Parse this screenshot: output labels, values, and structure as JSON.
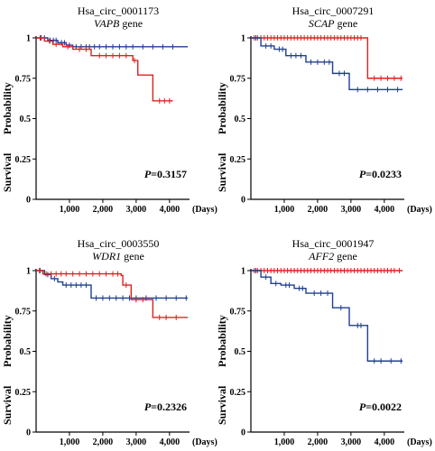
{
  "chart_data": [
    {
      "type": "line",
      "title": "Hsa_circ_0001173",
      "gene_symbol": "VAPB",
      "gene_suffix": " gene",
      "ylabel_left": "Survival",
      "ylabel_right": "Probability",
      "p_prefix": "P",
      "p_value": "=0.3157",
      "x_unit_label": "(Days)",
      "xlim": [
        0,
        4600
      ],
      "ylim": [
        0,
        1
      ],
      "x_ticks": [
        1000,
        2000,
        3000,
        4000
      ],
      "x_tick_labels": [
        "1,000",
        "2,000",
        "3,000",
        "4,000"
      ],
      "y_ticks": [
        0,
        0.25,
        0.5,
        0.75,
        1
      ],
      "y_tick_labels": [
        "0",
        "0.25",
        "0.5",
        "0.75",
        "1"
      ],
      "series": [
        {
          "color": "#1f3f8f",
          "steps": [
            [
              0,
              1
            ],
            [
              350,
              0.985
            ],
            [
              650,
              0.97
            ],
            [
              900,
              0.955
            ],
            [
              1100,
              0.945
            ],
            [
              4550,
              0.945
            ]
          ],
          "censors": [
            150,
            250,
            420,
            520,
            600,
            760,
            850,
            1000,
            1200,
            1350,
            1500,
            1600,
            1750,
            1900,
            2100,
            2300,
            2500,
            2700,
            2900,
            3200,
            3500,
            3800,
            4100
          ]
        },
        {
          "color": "#e02020",
          "steps": [
            [
              0,
              1
            ],
            [
              250,
              0.98
            ],
            [
              500,
              0.96
            ],
            [
              800,
              0.945
            ],
            [
              1100,
              0.93
            ],
            [
              1650,
              0.89
            ],
            [
              2900,
              0.86
            ],
            [
              3050,
              0.77
            ],
            [
              3500,
              0.61
            ],
            [
              4100,
              0.61
            ]
          ],
          "censors": [
            120,
            400,
            600,
            950,
            1300,
            1500,
            1900,
            2100,
            2300,
            2500,
            2700,
            2950,
            3700,
            3850,
            4000
          ]
        }
      ]
    },
    {
      "type": "line",
      "title": "Hsa_circ_0007291",
      "gene_symbol": "SCAP",
      "gene_suffix": " gene",
      "ylabel_left": "Survival",
      "ylabel_right": "Probability",
      "p_prefix": "P",
      "p_value": "=0.0233",
      "x_unit_label": "(Days)",
      "xlim": [
        0,
        4600
      ],
      "ylim": [
        0,
        1
      ],
      "x_ticks": [
        1000,
        2000,
        3000,
        4000
      ],
      "x_tick_labels": [
        "1,000",
        "2,000",
        "3,000",
        "4,000"
      ],
      "y_ticks": [
        0,
        0.25,
        0.5,
        0.75,
        1
      ],
      "y_tick_labels": [
        "0",
        "0.25",
        "0.5",
        "0.75",
        "1"
      ],
      "series": [
        {
          "color": "#e02020",
          "steps": [
            [
              0,
              1
            ],
            [
              3500,
              1
            ],
            [
              3500,
              0.75
            ],
            [
              4550,
              0.75
            ]
          ],
          "censors": [
            100,
            200,
            300,
            400,
            500,
            600,
            700,
            800,
            900,
            1000,
            1100,
            1200,
            1300,
            1400,
            1500,
            1600,
            1700,
            1800,
            1900,
            2000,
            2100,
            2200,
            2300,
            2400,
            2500,
            2600,
            2700,
            2800,
            2900,
            3000,
            3100,
            3200,
            3300,
            3700,
            3900,
            4100,
            4300,
            4500
          ]
        },
        {
          "color": "#1f3f8f",
          "steps": [
            [
              0,
              1
            ],
            [
              300,
              0.95
            ],
            [
              700,
              0.93
            ],
            [
              1050,
              0.89
            ],
            [
              1650,
              0.85
            ],
            [
              2450,
              0.78
            ],
            [
              2950,
              0.68
            ],
            [
              4550,
              0.68
            ]
          ],
          "censors": [
            150,
            450,
            600,
            850,
            950,
            1200,
            1350,
            1500,
            1800,
            2000,
            2200,
            2350,
            2650,
            2800,
            3200,
            3500,
            3800,
            4100,
            4400
          ]
        }
      ]
    },
    {
      "type": "line",
      "title": "Hsa_circ_0003550",
      "gene_symbol": "WDR1",
      "gene_suffix": " gene",
      "ylabel_left": "Survival",
      "ylabel_right": "Probability",
      "p_prefix": "P",
      "p_value": "=0.2326",
      "x_unit_label": "(Days)",
      "xlim": [
        0,
        4600
      ],
      "ylim": [
        0,
        1
      ],
      "x_ticks": [
        1000,
        2000,
        3000,
        4000
      ],
      "x_tick_labels": [
        "1,000",
        "2,000",
        "3,000",
        "4,000"
      ],
      "y_ticks": [
        0,
        0.25,
        0.5,
        0.75,
        1
      ],
      "y_tick_labels": [
        "0",
        "0.25",
        "0.5",
        "0.75",
        "1"
      ],
      "series": [
        {
          "color": "#1f3f8f",
          "steps": [
            [
              0,
              1
            ],
            [
              250,
              0.975
            ],
            [
              450,
              0.95
            ],
            [
              650,
              0.93
            ],
            [
              800,
              0.91
            ],
            [
              1650,
              0.83
            ],
            [
              4550,
              0.83
            ]
          ],
          "censors": [
            120,
            350,
            550,
            900,
            1050,
            1200,
            1350,
            1500,
            1800,
            2000,
            2200,
            2400,
            2600,
            2800,
            3000,
            3300,
            3600,
            3900,
            4200,
            4500
          ]
        },
        {
          "color": "#e02020",
          "steps": [
            [
              0,
              1
            ],
            [
              200,
              0.98
            ],
            [
              2550,
              0.97
            ],
            [
              2600,
              0.91
            ],
            [
              2850,
              0.82
            ],
            [
              3500,
              0.71
            ],
            [
              4550,
              0.71
            ]
          ],
          "censors": [
            100,
            300,
            450,
            600,
            750,
            900,
            1100,
            1300,
            1500,
            1700,
            1900,
            2100,
            2300,
            2450,
            2700,
            3000,
            3200,
            3700,
            3900,
            4200
          ]
        }
      ]
    },
    {
      "type": "line",
      "title": "Hsa_circ_0001947",
      "gene_symbol": "AFF2",
      "gene_suffix": " gene",
      "ylabel_left": "Survival",
      "ylabel_right": "Probability",
      "p_prefix": "P",
      "p_value": "=0.0022",
      "x_unit_label": "(Days)",
      "xlim": [
        0,
        4600
      ],
      "ylim": [
        0,
        1
      ],
      "x_ticks": [
        1000,
        2000,
        3000,
        4000
      ],
      "x_tick_labels": [
        "1,000",
        "2,000",
        "3,000",
        "4,000"
      ],
      "y_ticks": [
        0,
        0.25,
        0.5,
        0.75,
        1
      ],
      "y_tick_labels": [
        "0",
        "0.25",
        "0.5",
        "0.75",
        "1"
      ],
      "series": [
        {
          "color": "#e02020",
          "steps": [
            [
              0,
              1
            ],
            [
              4550,
              1
            ]
          ],
          "censors": [
            100,
            200,
            300,
            400,
            500,
            600,
            700,
            800,
            900,
            1000,
            1100,
            1200,
            1300,
            1400,
            1500,
            1600,
            1700,
            1800,
            1900,
            2000,
            2100,
            2200,
            2300,
            2400,
            2500,
            2600,
            2700,
            2800,
            2900,
            3000,
            3100,
            3200,
            3300,
            3400,
            3500,
            3600,
            3700,
            3800,
            3900,
            4000,
            4100,
            4200,
            4300,
            4450
          ]
        },
        {
          "color": "#1f3f8f",
          "steps": [
            [
              0,
              1
            ],
            [
              300,
              0.96
            ],
            [
              600,
              0.92
            ],
            [
              900,
              0.91
            ],
            [
              1300,
              0.89
            ],
            [
              1650,
              0.86
            ],
            [
              2450,
              0.77
            ],
            [
              2950,
              0.66
            ],
            [
              3500,
              0.44
            ],
            [
              4550,
              0.44
            ]
          ],
          "censors": [
            150,
            450,
            750,
            1050,
            1150,
            1450,
            1550,
            1900,
            2100,
            2300,
            2700,
            3200,
            3300,
            3700,
            3900,
            4200,
            4500
          ]
        }
      ]
    }
  ]
}
